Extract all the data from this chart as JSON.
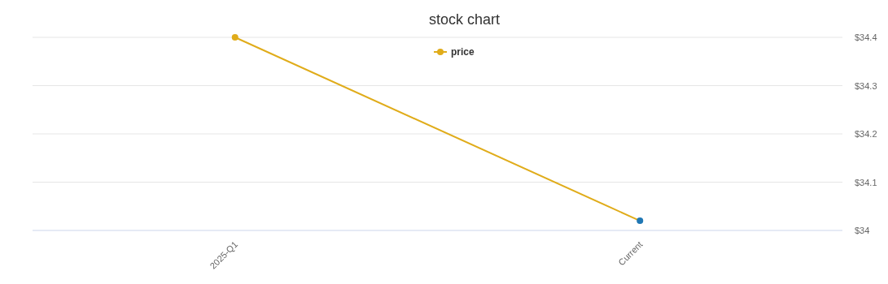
{
  "chart_data": {
    "type": "line",
    "title": "stock chart",
    "categories": [
      "2025-Q1",
      "Current"
    ],
    "series": [
      {
        "name": "price",
        "color": "#e0ac1a",
        "colors": [
          "#e0ac1a",
          "#1f77b4"
        ],
        "values": [
          34.4,
          34.02
        ]
      }
    ],
    "ylim": [
      34,
      34.4
    ],
    "yticks": [
      {
        "value": 34,
        "label": "$34"
      },
      {
        "value": 34.1,
        "label": "$34.1"
      },
      {
        "value": 34.2,
        "label": "$34.2"
      },
      {
        "value": 34.3,
        "label": "$34.3"
      },
      {
        "value": 34.4,
        "label": "$34.4"
      }
    ],
    "grid": true,
    "legend": "top",
    "marker": "circle"
  }
}
